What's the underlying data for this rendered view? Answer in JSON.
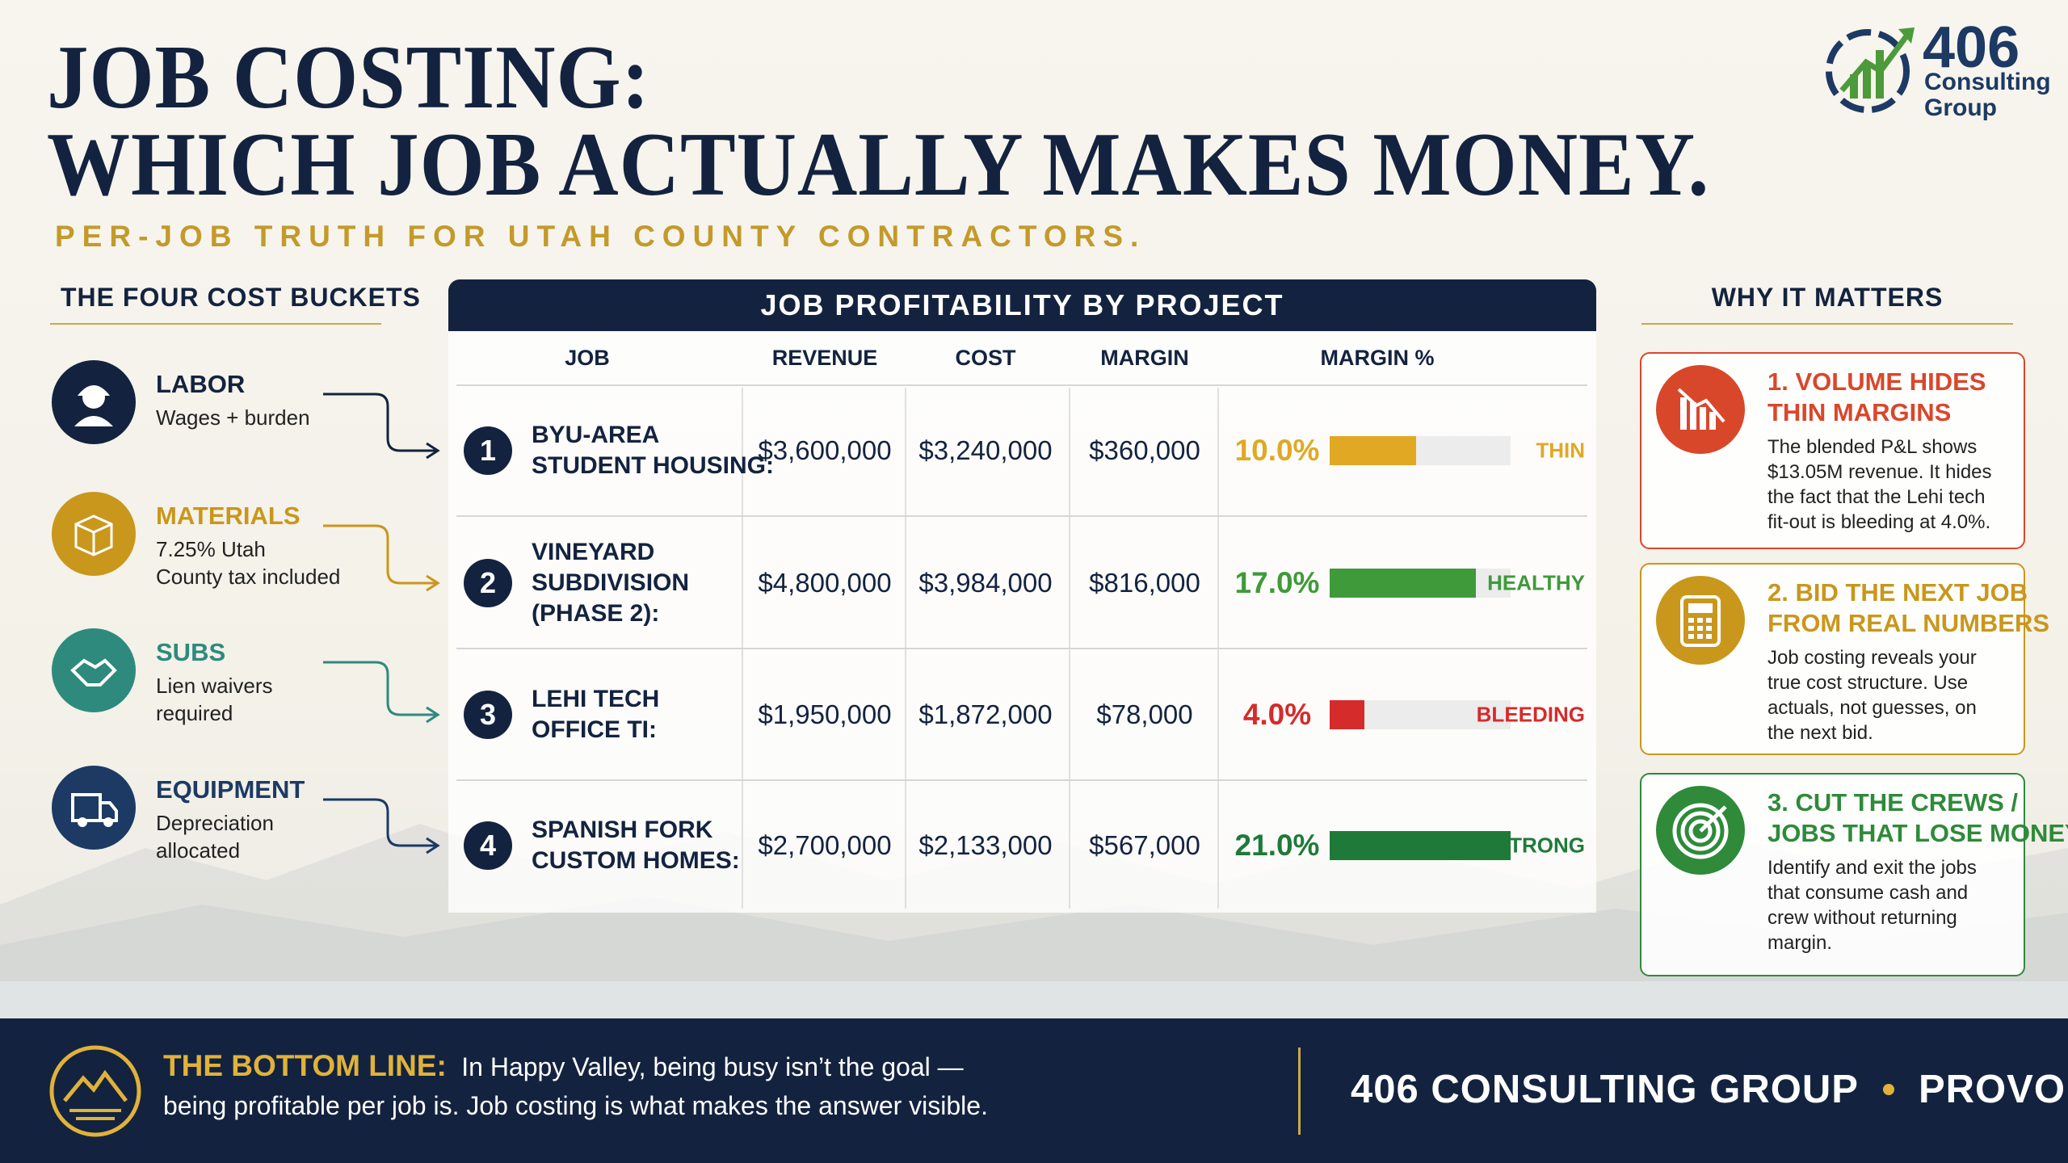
{
  "header": {
    "title_line1": "JOB COSTING:",
    "title_line2": "WHICH JOB ACTUALLY MAKES MONEY.",
    "subtitle": "PER-JOB TRUTH FOR UTAH COUNTY CONTRACTORS."
  },
  "logo": {
    "number": "406",
    "line1": "Consulting",
    "line2": "Group"
  },
  "buckets": {
    "title": "THE FOUR COST BUCKETS",
    "items": [
      {
        "name": "LABOR",
        "desc": [
          "Wages + burden"
        ],
        "color": "#13233f"
      },
      {
        "name": "MATERIALS",
        "desc": [
          "7.25% Utah",
          "County tax included"
        ],
        "color": "#c9971c"
      },
      {
        "name": "SUBS",
        "desc": [
          "Lien waivers",
          "required"
        ],
        "color": "#2e8a7d"
      },
      {
        "name": "EQUIPMENT",
        "desc": [
          "Depreciation",
          "allocated"
        ],
        "color": "#1c3a63"
      }
    ]
  },
  "table": {
    "title": "JOB PROFITABILITY BY PROJECT",
    "columns": [
      "JOB",
      "REVENUE",
      "COST",
      "MARGIN",
      "MARGIN %"
    ],
    "rows": [
      {
        "num": 1,
        "job": [
          "BYU-AREA",
          "STUDENT HOUSING:"
        ],
        "revenue": "$3,600,000",
        "cost": "$3,240,000",
        "margin": "$360,000",
        "margin_pct": {
          "value": 10.0,
          "label": "10.0%"
        },
        "status": "THIN",
        "color": "#e0a823"
      },
      {
        "num": 2,
        "job": [
          "VINEYARD",
          "SUBDIVISION",
          "(PHASE 2):"
        ],
        "revenue": "$4,800,000",
        "cost": "$3,984,000",
        "margin": "$816,000",
        "margin_pct": {
          "value": 17.0,
          "label": "17.0%"
        },
        "status": "HEALTHY",
        "color": "#3f9a3a"
      },
      {
        "num": 3,
        "job": [
          "LEHI TECH",
          "OFFICE TI:"
        ],
        "revenue": "$1,950,000",
        "cost": "$1,872,000",
        "margin": "$78,000",
        "margin_pct": {
          "value": 4.0,
          "label": "4.0%"
        },
        "status": "BLEEDING",
        "color": "#d52b2b"
      },
      {
        "num": 4,
        "job": [
          "SPANISH FORK",
          "CUSTOM HOMES:"
        ],
        "revenue": "$2,700,000",
        "cost": "$2,133,000",
        "margin": "$567,000",
        "margin_pct": {
          "value": 21.0,
          "label": "21.0%"
        },
        "status": "STRONG",
        "color": "#1f7a3a"
      }
    ]
  },
  "why": {
    "title": "WHY IT MATTERS",
    "cards": [
      {
        "heading": [
          "1. VOLUME HIDES",
          "THIN MARGINS"
        ],
        "body": [
          "The blended P&L shows",
          "$13.05M revenue. It hides",
          "the fact that the Lehi tech",
          "fit-out is bleeding at 4.0%."
        ],
        "color": "#d9472b"
      },
      {
        "heading": [
          "2. BID THE NEXT JOB",
          "FROM REAL NUMBERS"
        ],
        "body": [
          "Job costing reveals your",
          "true cost structure. Use",
          "actuals, not guesses, on",
          "the next bid."
        ],
        "color": "#c9971c"
      },
      {
        "heading": [
          "3. CUT THE CREWS /",
          "JOBS THAT LOSE MONEY"
        ],
        "body": [
          "Identify and exit the jobs",
          "that consume cash and",
          "crew without returning",
          "margin."
        ],
        "color": "#2f8a3a"
      }
    ]
  },
  "footer": {
    "label": "THE BOTTOM LINE:",
    "line1": "In Happy Valley, being busy isn’t the goal —",
    "line2": "being profitable per job is. Job costing is what makes the answer visible.",
    "brand": "406 CONSULTING GROUP",
    "location": "PROVO, UT"
  }
}
